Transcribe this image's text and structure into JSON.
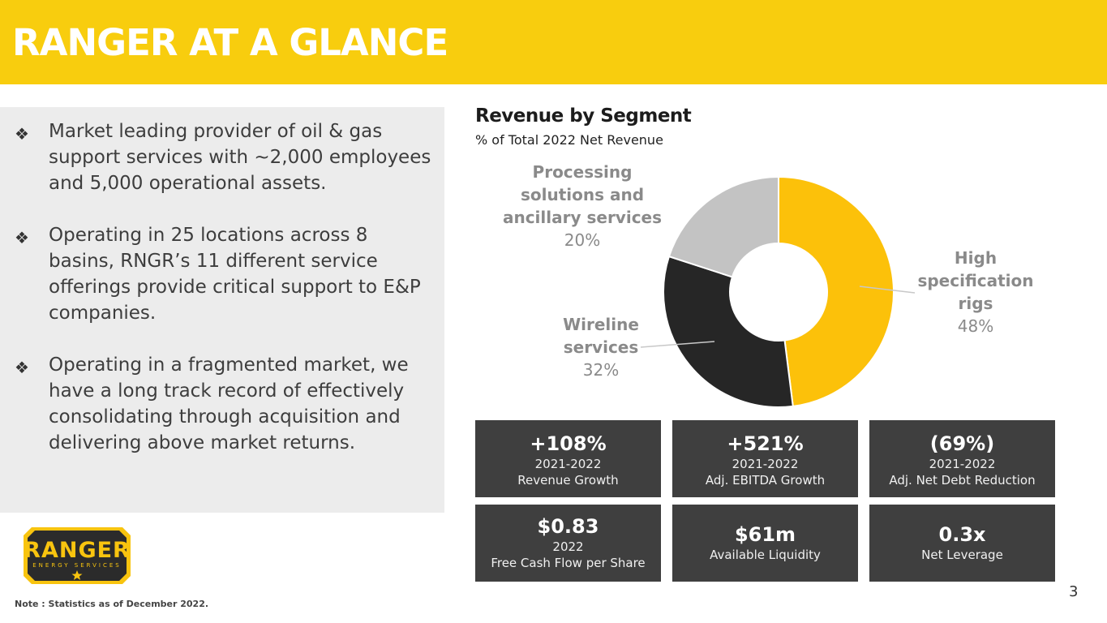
{
  "header": {
    "title": "RANGER AT A GLANCE"
  },
  "bullets": [
    "Market leading provider of oil & gas support services with ~2,000 employees and 5,000 operational assets.",
    "Operating in 25 locations across 8 basins, RNGR’s 11 different service offerings provide critical support to E&P companies.",
    "Operating in a fragmented market, we have a long track record of effectively consolidating through acquisition and delivering above market returns."
  ],
  "bullet_icon": "diamond-cluster-icon",
  "logo": {
    "brand": "RANGER",
    "tagline": "ENERGY SERVICES"
  },
  "note": "Note : Statistics as of December 2022.",
  "chart_data": {
    "type": "pie",
    "title": "Revenue by Segment",
    "subtitle": "% of Total 2022 Net Revenue",
    "donut": true,
    "slices": [
      {
        "name": "High specification rigs",
        "value": 48,
        "label": "48%",
        "color": "#fcc10a"
      },
      {
        "name": "Wireline services",
        "value": 32,
        "label": "32%",
        "color": "#262626"
      },
      {
        "name": "Processing solutions and ancillary services",
        "value": 20,
        "label": "20%",
        "color": "#c3c3c3"
      }
    ],
    "segment_labels": {
      "rigs": [
        "High",
        "specification",
        "rigs"
      ],
      "wireline": [
        "Wireline",
        "services"
      ],
      "processing": [
        "Processing",
        "solutions and",
        "ancillary services"
      ]
    }
  },
  "stats": [
    {
      "value": "+108%",
      "lines": [
        "2021-2022",
        "Revenue Growth"
      ]
    },
    {
      "value": "+521%",
      "lines": [
        "2021-2022",
        "Adj. EBITDA Growth"
      ]
    },
    {
      "value": "(69%)",
      "lines": [
        "2021-2022",
        "Adj. Net Debt Reduction"
      ]
    },
    {
      "value": "$0.83",
      "lines": [
        "2022",
        "Free Cash Flow per Share"
      ]
    },
    {
      "value": "$61m",
      "lines": [
        "Available Liquidity"
      ]
    },
    {
      "value": "0.3x",
      "lines": [
        "Net Leverage"
      ]
    }
  ],
  "page_number": "3"
}
